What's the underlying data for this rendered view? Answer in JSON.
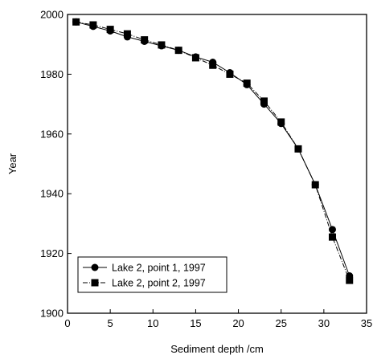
{
  "chart_data": {
    "type": "line",
    "xlabel": "Sediment depth /cm",
    "ylabel": "Year",
    "xlim": [
      0,
      35
    ],
    "ylim": [
      1900,
      2000
    ],
    "xticks": [
      0,
      5,
      10,
      15,
      20,
      25,
      30,
      35
    ],
    "yticks": [
      1900,
      1920,
      1940,
      1960,
      1980,
      2000
    ],
    "grid": false,
    "legend_position": "bottom-left",
    "series": [
      {
        "name": "Lake 2, point 1, 1997",
        "marker": "circle",
        "line_style": "solid",
        "x": [
          1,
          3,
          5,
          7,
          9,
          11,
          13,
          15,
          17,
          19,
          21,
          23,
          25,
          27,
          29,
          31,
          33
        ],
        "y": [
          1997.5,
          1996,
          1994.5,
          1992.5,
          1991,
          1989.5,
          1988,
          1985.8,
          1984,
          1980.5,
          1976.5,
          1970,
          1963.5,
          1955,
          1943,
          1928,
          1912.5
        ]
      },
      {
        "name": "Lake 2, point 2, 1997",
        "marker": "square",
        "line_style": "dash-dot",
        "x": [
          1,
          3,
          5,
          7,
          9,
          11,
          13,
          15,
          17,
          19,
          21,
          23,
          25,
          27,
          29,
          31,
          33
        ],
        "y": [
          1997.5,
          1996.5,
          1995,
          1993.5,
          1991.5,
          1989.8,
          1988,
          1985.5,
          1983,
          1980,
          1977,
          1971,
          1964,
          1955,
          1943,
          1925.5,
          1911
        ]
      }
    ]
  }
}
